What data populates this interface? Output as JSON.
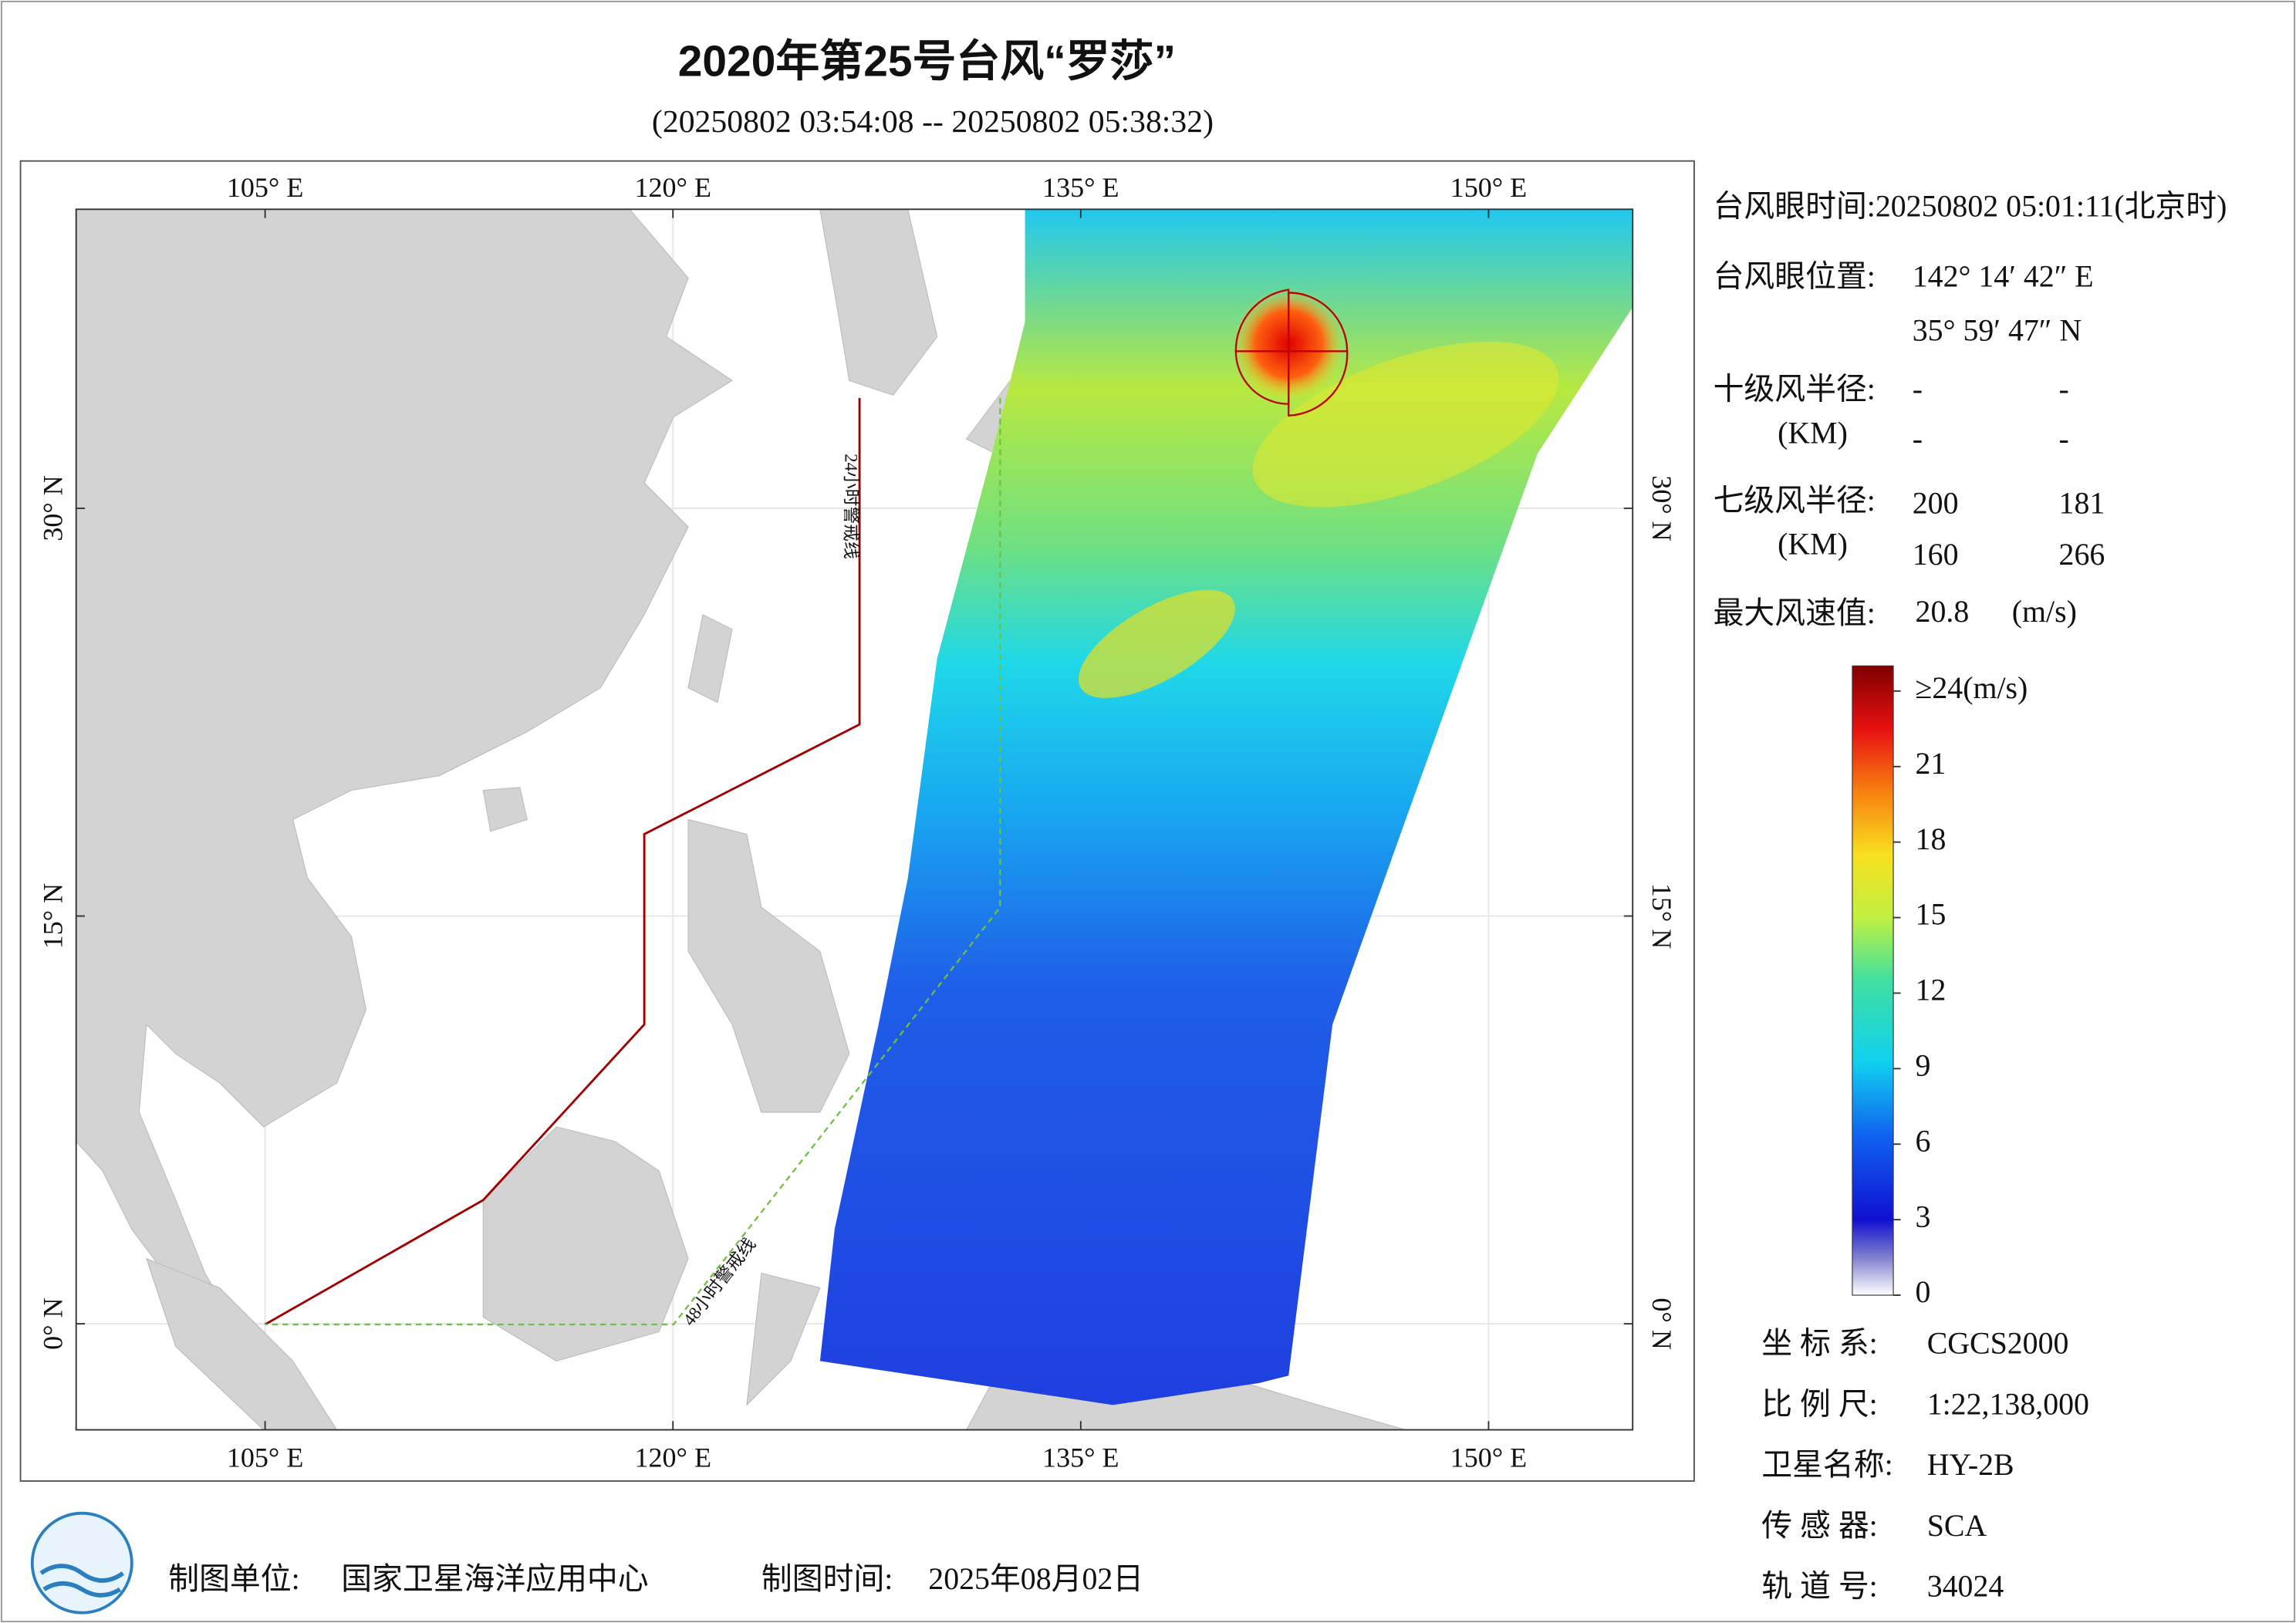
{
  "header": {
    "title": "2020年第25号台风“罗莎”",
    "subtitle": "(20250802 03:54:08 -- 20250802 05:38:32)"
  },
  "map": {
    "xlim": [
      98.05,
      155.3
    ],
    "ylim": [
      -3.9,
      41.0
    ],
    "lon_ticks": [
      {
        "value": 105,
        "label": "105° E"
      },
      {
        "value": 120,
        "label": "120° E"
      },
      {
        "value": 135,
        "label": "135° E"
      },
      {
        "value": 150,
        "label": "150° E"
      }
    ],
    "lat_ticks": [
      {
        "value": 0,
        "label": "0° N"
      },
      {
        "value": 15,
        "label": "15° N"
      },
      {
        "value": 30,
        "label": "30° N"
      }
    ],
    "warning_24h": "24小时警戒线",
    "warning_48h": "48小时警戒线"
  },
  "info": {
    "eye_time": "台风眼时间:20250802 05:01:11(北京时)",
    "eye_position_label": "台风眼位置:",
    "eye_lon": "142° 14′ 42″ E",
    "eye_lat": "35° 59′ 47″ N",
    "r10_label": "十级风半径:",
    "r10_unit": "(KM)",
    "r10_values": [
      "-",
      "-",
      "-",
      "-"
    ],
    "r7_label": "七级风半径:",
    "r7_unit": "(KM)",
    "r7_values": [
      200,
      181,
      160,
      266
    ],
    "max_wind_label": "最大风速值:",
    "max_wind": 20.8,
    "max_wind_unit": "(m/s)"
  },
  "colorbar": {
    "lim": [
      0,
      25
    ],
    "ticks": [
      0,
      3,
      6,
      9,
      12,
      15,
      18,
      21,
      {
        "value": 24,
        "label": "≥24(m/s)"
      }
    ]
  },
  "meta": {
    "rows": [
      [
        "坐 标 系:",
        "CGCS2000"
      ],
      [
        "比 例 尺:",
        "1:22,138,000"
      ],
      [
        "卫星名称:",
        "HY-2B"
      ],
      [
        "传 感 器:",
        "SCA"
      ],
      [
        "轨 道 号:",
        "34024"
      ]
    ]
  },
  "footer": {
    "unit_label": "制图单位:",
    "unit": "国家卫星海洋应用中心",
    "time_label": "制图时间:",
    "time": "2025年08月02日"
  }
}
